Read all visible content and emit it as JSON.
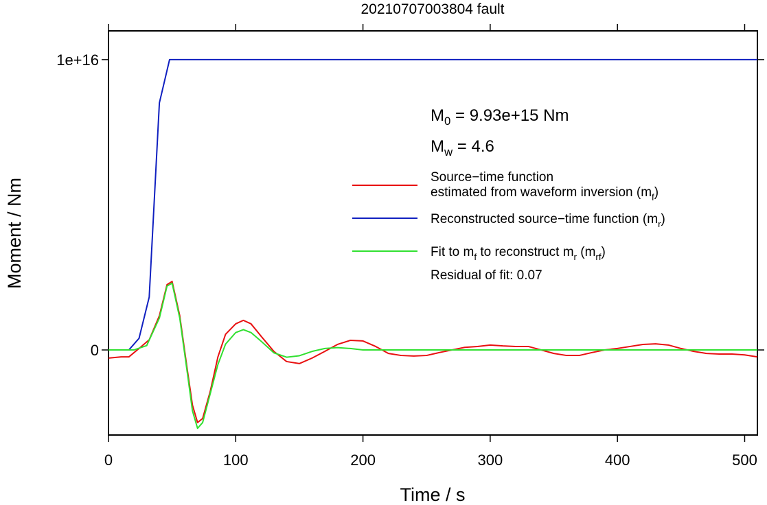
{
  "chart_data": {
    "type": "line",
    "title": "20210707003804 fault",
    "xlabel": "Time / s",
    "ylabel": "Moment / Nm",
    "xlim": [
      0,
      510
    ],
    "ylim": [
      -2930000000000000.0,
      1.099e+16
    ],
    "xticks": [
      0,
      100,
      200,
      300,
      400,
      500
    ],
    "yticks": [
      0,
      {
        "value": 1e+16,
        "label": "1e+16"
      }
    ],
    "annotations": [
      [
        "M",
        {
          "sub": "0"
        },
        " = 9.93e+15 Nm"
      ],
      [
        "M",
        {
          "sub": "w"
        },
        " = 4.6"
      ],
      [
        "Residual of fit: 0.07"
      ]
    ],
    "series": [
      {
        "name": [
          [
            "Source−time function"
          ],
          [
            "estimated from waveform inversion (m",
            {
              "sub": "f"
            },
            ")"
          ]
        ],
        "color": "#e81010",
        "x": [
          0,
          10,
          16,
          24,
          32,
          40,
          46,
          50,
          56,
          62,
          66,
          70,
          74,
          80,
          86,
          92,
          100,
          106,
          112,
          120,
          130,
          140,
          150,
          160,
          170,
          180,
          190,
          200,
          210,
          220,
          230,
          240,
          250,
          260,
          270,
          280,
          290,
          300,
          310,
          320,
          330,
          340,
          350,
          360,
          370,
          380,
          390,
          400,
          410,
          420,
          430,
          440,
          450,
          460,
          470,
          480,
          490,
          500,
          510
        ],
        "values": [
          -280000000000000.0,
          -240000000000000.0,
          -240000000000000.0,
          50000000000000.0,
          350000000000000.0,
          1180000000000000.0,
          2250000000000000.0,
          2360000000000000.0,
          1180000000000000.0,
          -700000000000000.0,
          -1900000000000000.0,
          -2500000000000000.0,
          -2360000000000000.0,
          -1420000000000000.0,
          -240000000000000.0,
          540000000000000.0,
          900000000000000.0,
          1020000000000000.0,
          900000000000000.0,
          470000000000000.0,
          -50000000000000.0,
          -400000000000000.0,
          -470000000000000.0,
          -280000000000000.0,
          -50000000000000.0,
          190000000000000.0,
          330000000000000.0,
          310000000000000.0,
          120000000000000.0,
          -120000000000000.0,
          -190000000000000.0,
          -210000000000000.0,
          -190000000000000.0,
          -90000000000000.0,
          0,
          90000000000000.0,
          120000000000000.0,
          170000000000000.0,
          140000000000000.0,
          120000000000000.0,
          120000000000000.0,
          0,
          -120000000000000.0,
          -190000000000000.0,
          -190000000000000.0,
          -90000000000000.0,
          0,
          50000000000000.0,
          120000000000000.0,
          190000000000000.0,
          210000000000000.0,
          170000000000000.0,
          50000000000000.0,
          -50000000000000.0,
          -120000000000000.0,
          -140000000000000.0,
          -140000000000000.0,
          -170000000000000.0,
          -240000000000000.0
        ]
      },
      {
        "name": [
          [
            "Reconstructed source−time function (m",
            {
              "sub": "r"
            },
            ")"
          ]
        ],
        "color": "#1020c0",
        "x": [
          0,
          16,
          24,
          32,
          40,
          48,
          510
        ],
        "values": [
          0,
          0,
          400000000000000.0,
          1820000000000000.0,
          8510000000000000.0,
          1e+16,
          1e+16
        ]
      },
      {
        "name": [
          [
            "Fit to m",
            {
              "sub": "f"
            },
            " to reconstruct m",
            {
              "sub": "r"
            },
            " (m",
            {
              "sub": "rf"
            },
            ")"
          ]
        ],
        "color": "#30e030",
        "x": [
          0,
          20,
          30,
          40,
          46,
          50,
          56,
          62,
          66,
          70,
          74,
          80,
          86,
          92,
          100,
          106,
          112,
          120,
          130,
          140,
          150,
          160,
          170,
          180,
          190,
          200,
          510
        ],
        "values": [
          0,
          0,
          150000000000000.0,
          1100000000000000.0,
          2200000000000000.0,
          2300000000000000.0,
          1100000000000000.0,
          -800000000000000.0,
          -2100000000000000.0,
          -2700000000000000.0,
          -2500000000000000.0,
          -1500000000000000.0,
          -500000000000000.0,
          200000000000000.0,
          600000000000000.0,
          700000000000000.0,
          600000000000000.0,
          300000000000000.0,
          -100000000000000.0,
          -250000000000000.0,
          -200000000000000.0,
          -50000000000000.0,
          50000000000000.0,
          80000000000000.0,
          50000000000000.0,
          0,
          0
        ]
      }
    ]
  }
}
